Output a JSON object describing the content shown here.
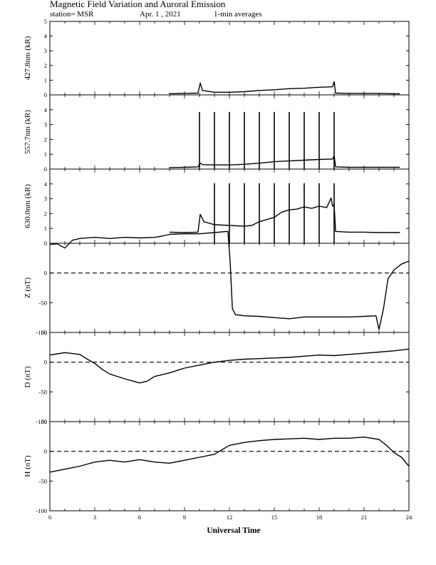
{
  "header": {
    "title": "Magnetic Field Variation and Auroral Emission",
    "station": "station= MSR",
    "date": "Apr. 1  , 2021",
    "averaging": "1-min averages"
  },
  "chart_data": {
    "type": "line",
    "x_range": [
      0,
      24
    ],
    "x_ticks": [
      0,
      3,
      6,
      9,
      12,
      15,
      18,
      21,
      24
    ],
    "xlabel": "Universal Time",
    "panels": [
      {
        "ylabel": "427.8nm (kR)",
        "ylim": [
          0,
          5
        ],
        "y_ticks": [
          0,
          1,
          2,
          3,
          4,
          5
        ],
        "dashed_zero": false,
        "points": [
          [
            8.0,
            0.08
          ],
          [
            9.0,
            0.1
          ],
          [
            9.9,
            0.12
          ],
          [
            10.05,
            0.8
          ],
          [
            10.2,
            0.3
          ],
          [
            11,
            0.18
          ],
          [
            12,
            0.18
          ],
          [
            13,
            0.22
          ],
          [
            14,
            0.3
          ],
          [
            15,
            0.35
          ],
          [
            16,
            0.42
          ],
          [
            17,
            0.45
          ],
          [
            18,
            0.52
          ],
          [
            18.9,
            0.55
          ],
          [
            19.0,
            0.9
          ],
          [
            19.1,
            0.12
          ],
          [
            20,
            0.1
          ],
          [
            21,
            0.1
          ],
          [
            22,
            0.1
          ],
          [
            23,
            0.08
          ],
          [
            23.4,
            0.08
          ]
        ],
        "spikes": []
      },
      {
        "ylabel": "557.7nm (kR)",
        "ylim": [
          0,
          5
        ],
        "y_ticks": [
          0,
          1,
          2,
          3,
          4
        ],
        "dashed_zero": false,
        "points": [
          [
            8.0,
            0.1
          ],
          [
            9.0,
            0.12
          ],
          [
            9.9,
            0.15
          ],
          [
            10.05,
            0.4
          ],
          [
            10.2,
            0.3
          ],
          [
            11,
            0.28
          ],
          [
            12,
            0.28
          ],
          [
            13,
            0.32
          ],
          [
            14,
            0.4
          ],
          [
            15,
            0.5
          ],
          [
            16,
            0.55
          ],
          [
            17,
            0.6
          ],
          [
            18,
            0.65
          ],
          [
            18.9,
            0.68
          ],
          [
            19.0,
            0.9
          ],
          [
            19.1,
            0.15
          ],
          [
            20,
            0.12
          ],
          [
            21,
            0.12
          ],
          [
            22,
            0.12
          ],
          [
            23,
            0.12
          ],
          [
            23.4,
            0.12
          ]
        ],
        "spikes": [
          10,
          11,
          12,
          13,
          14,
          15,
          16,
          17,
          18,
          19
        ],
        "spike_top": 3.85
      },
      {
        "ylabel": "630.0nm (kR)",
        "ylim": [
          0,
          5
        ],
        "y_ticks": [
          0,
          1,
          2,
          3,
          4
        ],
        "dashed_zero": false,
        "points": [
          [
            8.0,
            0.75
          ],
          [
            9.0,
            0.72
          ],
          [
            9.9,
            0.75
          ],
          [
            10.05,
            1.95
          ],
          [
            10.3,
            1.45
          ],
          [
            11,
            1.25
          ],
          [
            12,
            1.2
          ],
          [
            13,
            1.15
          ],
          [
            13.5,
            1.2
          ],
          [
            14,
            1.45
          ],
          [
            15,
            1.75
          ],
          [
            15.5,
            2.1
          ],
          [
            16,
            2.25
          ],
          [
            16.5,
            2.3
          ],
          [
            17,
            2.45
          ],
          [
            17.5,
            2.35
          ],
          [
            18,
            2.5
          ],
          [
            18.5,
            2.4
          ],
          [
            18.8,
            3.05
          ],
          [
            18.9,
            2.5
          ],
          [
            19.0,
            2.6
          ],
          [
            19.1,
            0.8
          ],
          [
            20,
            0.75
          ],
          [
            21,
            0.75
          ],
          [
            22,
            0.72
          ],
          [
            23,
            0.72
          ],
          [
            23.4,
            0.72
          ]
        ],
        "spikes": [
          11,
          12,
          13,
          14,
          15,
          16,
          17,
          18,
          19
        ],
        "spike_top": 4.05
      },
      {
        "ylabel": "Z (nT)",
        "ylim": [
          -100,
          50
        ],
        "y_ticks": [
          -100,
          -50,
          0
        ],
        "dashed_zero": true,
        "points": [
          [
            0,
            48
          ],
          [
            0.5,
            49
          ],
          [
            1,
            42
          ],
          [
            1.5,
            55
          ],
          [
            2,
            58
          ],
          [
            3,
            60
          ],
          [
            4,
            58
          ],
          [
            5,
            60
          ],
          [
            6,
            59
          ],
          [
            7,
            60
          ],
          [
            7.5,
            62
          ],
          [
            8,
            65
          ],
          [
            9,
            66
          ],
          [
            10,
            66
          ],
          [
            11,
            68
          ],
          [
            11.9,
            70
          ],
          [
            12.05,
            20
          ],
          [
            12.2,
            -60
          ],
          [
            12.4,
            -70
          ],
          [
            13,
            -72
          ],
          [
            14,
            -73
          ],
          [
            15,
            -75
          ],
          [
            16,
            -77
          ],
          [
            17,
            -74
          ],
          [
            18,
            -74
          ],
          [
            19,
            -74
          ],
          [
            20,
            -74
          ],
          [
            21,
            -73
          ],
          [
            21.8,
            -72
          ],
          [
            22.0,
            -95
          ],
          [
            22.3,
            -60
          ],
          [
            22.6,
            -10
          ],
          [
            23,
            5
          ],
          [
            23.5,
            15
          ],
          [
            24,
            20
          ]
        ],
        "spikes": []
      },
      {
        "ylabel": "D (nT)",
        "ylim": [
          -100,
          50
        ],
        "y_ticks": [
          -100,
          -50,
          0,
          50
        ],
        "dashed_zero": true,
        "points": [
          [
            0,
            12
          ],
          [
            0.5,
            14
          ],
          [
            1,
            16
          ],
          [
            2,
            13
          ],
          [
            2.5,
            5
          ],
          [
            3,
            -2
          ],
          [
            3.5,
            -12
          ],
          [
            4,
            -20
          ],
          [
            5,
            -28
          ],
          [
            6,
            -35
          ],
          [
            6.5,
            -32
          ],
          [
            7,
            -24
          ],
          [
            8,
            -18
          ],
          [
            9,
            -10
          ],
          [
            10,
            -5
          ],
          [
            11,
            0
          ],
          [
            12,
            3
          ],
          [
            13,
            5
          ],
          [
            14,
            6
          ],
          [
            15,
            7
          ],
          [
            16,
            8
          ],
          [
            17,
            10
          ],
          [
            18,
            12
          ],
          [
            19,
            11
          ],
          [
            20,
            13
          ],
          [
            21,
            15
          ],
          [
            22,
            17
          ],
          [
            23,
            19
          ],
          [
            24,
            22
          ]
        ],
        "spikes": []
      },
      {
        "ylabel": "H (nT)",
        "ylim": [
          -100,
          50
        ],
        "y_ticks": [
          -100,
          -50,
          0,
          50
        ],
        "dashed_zero": true,
        "points": [
          [
            0,
            -35
          ],
          [
            1,
            -30
          ],
          [
            2,
            -25
          ],
          [
            3,
            -18
          ],
          [
            4,
            -15
          ],
          [
            5,
            -18
          ],
          [
            6,
            -14
          ],
          [
            7,
            -18
          ],
          [
            8,
            -20
          ],
          [
            9,
            -15
          ],
          [
            10,
            -10
          ],
          [
            11,
            -5
          ],
          [
            12,
            10
          ],
          [
            13,
            15
          ],
          [
            14,
            18
          ],
          [
            15,
            20
          ],
          [
            16,
            21
          ],
          [
            17,
            22
          ],
          [
            18,
            20
          ],
          [
            19,
            22
          ],
          [
            20,
            22
          ],
          [
            21,
            24
          ],
          [
            22,
            20
          ],
          [
            22.5,
            10
          ],
          [
            23,
            -2
          ],
          [
            23.5,
            -10
          ],
          [
            24,
            -25
          ]
        ],
        "spikes": []
      }
    ]
  }
}
